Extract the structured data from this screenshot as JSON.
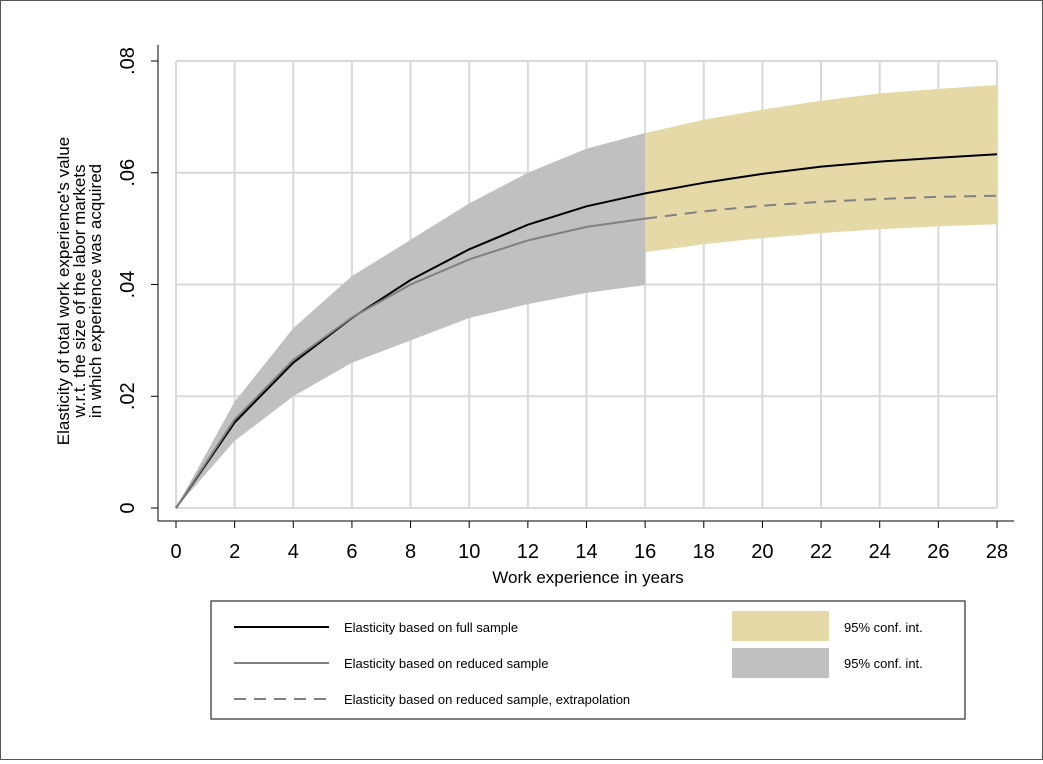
{
  "chart_data": {
    "type": "line",
    "title": "",
    "xlabel": "Work experience in years",
    "ylabel_lines": [
      "Elasticity of total work experience's value",
      "w.r.t. the size of the labor markets",
      "in which experience was acquired"
    ],
    "xlim": [
      0,
      28
    ],
    "ylim": [
      0,
      0.08
    ],
    "xticks": [
      0,
      2,
      4,
      6,
      8,
      10,
      12,
      14,
      16,
      18,
      20,
      22,
      24,
      26,
      28
    ],
    "xtick_labels": [
      "0",
      "2",
      "4",
      "6",
      "8",
      "10",
      "12",
      "14",
      "16",
      "18",
      "20",
      "22",
      "24",
      "26",
      "28"
    ],
    "yticks": [
      0,
      0.02,
      0.04,
      0.06,
      0.08
    ],
    "ytick_labels": [
      "0",
      ".02",
      ".04",
      ".06",
      ".08"
    ],
    "grid": true,
    "x": [
      0,
      2,
      4,
      6,
      8,
      10,
      12,
      14,
      16,
      18,
      20,
      22,
      24,
      26,
      28
    ],
    "series": [
      {
        "name": "Elasticity based on full sample",
        "style": "solid",
        "color": "#000000",
        "x": [
          0,
          2,
          4,
          6,
          8,
          10,
          12,
          14,
          16,
          18,
          20,
          22,
          24,
          26,
          28
        ],
        "values": [
          0,
          0.0153,
          0.026,
          0.034,
          0.0408,
          0.0463,
          0.0507,
          0.054,
          0.0563,
          0.0582,
          0.0598,
          0.0611,
          0.062,
          0.0627,
          0.0633
        ]
      },
      {
        "name": "Elasticity based on reduced sample",
        "style": "solid",
        "color": "#808080",
        "x": [
          0,
          2,
          4,
          6,
          8,
          10,
          12,
          14,
          16
        ],
        "values": [
          0,
          0.0158,
          0.0265,
          0.0341,
          0.04,
          0.0445,
          0.0479,
          0.0503,
          0.0518
        ]
      },
      {
        "name": "Elasticity based on reduced sample, extrapolation",
        "style": "dashed",
        "color": "#808080",
        "x": [
          16,
          18,
          20,
          22,
          24,
          26,
          28
        ],
        "values": [
          0.0518,
          0.0531,
          0.0541,
          0.0548,
          0.0553,
          0.0557,
          0.0559
        ]
      }
    ],
    "bands": [
      {
        "name": "95% conf. int.",
        "color": "#e6d9a8",
        "for": "Elasticity based on full sample",
        "x": [
          0,
          2,
          4,
          6,
          8,
          10,
          12,
          14,
          16,
          18,
          20,
          22,
          24,
          26,
          28
        ],
        "lower": [
          0,
          0.0125,
          0.0212,
          0.0265,
          0.031,
          0.0355,
          0.0405,
          0.0435,
          0.0458,
          0.0472,
          0.0483,
          0.0492,
          0.0499,
          0.0504,
          0.0508
        ],
        "upper": [
          0,
          0.018,
          0.0312,
          0.041,
          0.048,
          0.0545,
          0.06,
          0.0643,
          0.0671,
          0.0695,
          0.0713,
          0.0729,
          0.0742,
          0.075,
          0.0757
        ]
      },
      {
        "name": "95% conf. int.",
        "color": "#c0c0c0",
        "for": "Elasticity based on reduced sample",
        "x": [
          0,
          2,
          4,
          6,
          8,
          10,
          12,
          14,
          16
        ],
        "lower": [
          0,
          0.012,
          0.02,
          0.026,
          0.03,
          0.034,
          0.0365,
          0.0385,
          0.0399
        ],
        "upper": [
          0,
          0.019,
          0.0322,
          0.0415,
          0.048,
          0.0545,
          0.06,
          0.0643,
          0.0671
        ]
      }
    ],
    "legend": {
      "placement": "bottom",
      "lines": [
        {
          "label": "Elasticity based on full sample",
          "style": "solid",
          "color": "#000000"
        },
        {
          "label": "Elasticity based on reduced sample",
          "style": "solid",
          "color": "#808080"
        },
        {
          "label": "Elasticity based on reduced sample, extrapolation",
          "style": "dashed",
          "color": "#808080"
        }
      ],
      "swatches": [
        {
          "label": "95% conf. int.",
          "color": "#e6d9a8"
        },
        {
          "label": "95% conf. int.",
          "color": "#c0c0c0"
        }
      ]
    }
  }
}
